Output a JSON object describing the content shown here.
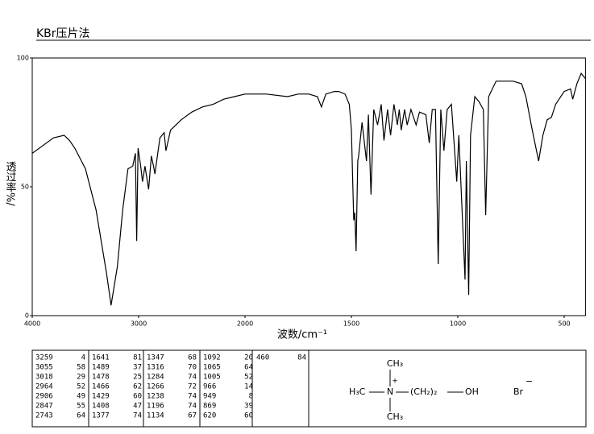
{
  "chart_data": {
    "type": "line",
    "title": "KBr压片法",
    "x_label": "波数/cm⁻¹",
    "y_label": "透过率%/",
    "xlim": [
      4000,
      400
    ],
    "xticks": [
      4000,
      3000,
      2000,
      1500,
      1000,
      500
    ],
    "ylim": [
      0,
      100
    ],
    "yticks": [
      0,
      50,
      100
    ],
    "color": "#000000",
    "x": [
      4000,
      3900,
      3800,
      3700,
      3650,
      3600,
      3500,
      3400,
      3300,
      3259,
      3200,
      3150,
      3100,
      3055,
      3030,
      3018,
      3005,
      2980,
      2964,
      2940,
      2906,
      2880,
      2860,
      2847,
      2800,
      2760,
      2743,
      2700,
      2600,
      2500,
      2400,
      2300,
      2200,
      2100,
      2000,
      1900,
      1800,
      1750,
      1700,
      1660,
      1641,
      1620,
      1580,
      1560,
      1530,
      1510,
      1500,
      1489,
      1484,
      1478,
      1470,
      1466,
      1450,
      1429,
      1420,
      1408,
      1395,
      1377,
      1360,
      1347,
      1330,
      1316,
      1300,
      1284,
      1275,
      1266,
      1250,
      1238,
      1220,
      1196,
      1180,
      1150,
      1134,
      1120,
      1105,
      1092,
      1080,
      1065,
      1050,
      1030,
      1005,
      995,
      966,
      960,
      949,
      940,
      920,
      900,
      880,
      869,
      855,
      820,
      800,
      740,
      700,
      680,
      650,
      620,
      600,
      580,
      560,
      540,
      500,
      470,
      460,
      440,
      420,
      400
    ],
    "values": [
      63,
      66,
      69,
      70,
      68,
      65,
      57,
      41,
      16,
      4,
      19,
      41,
      57,
      58,
      63,
      29,
      65,
      58,
      52,
      58,
      49,
      62,
      58,
      55,
      69,
      71,
      64,
      72,
      76,
      79,
      81,
      82,
      84,
      85,
      86,
      86,
      85,
      86,
      86,
      85,
      81,
      86,
      87,
      87,
      86,
      82,
      72,
      37,
      40,
      25,
      60,
      62,
      75,
      60,
      78,
      47,
      80,
      74,
      82,
      68,
      80,
      70,
      82,
      74,
      80,
      72,
      80,
      74,
      80,
      74,
      79,
      78,
      67,
      80,
      80,
      20,
      80,
      64,
      80,
      82,
      52,
      70,
      14,
      60,
      8,
      70,
      85,
      83,
      80,
      39,
      85,
      91,
      91,
      91,
      90,
      85,
      72,
      60,
      70,
      76,
      77,
      82,
      87,
      88,
      84,
      90,
      94,
      92
    ]
  },
  "peak_table": {
    "columns": [
      [
        [
          3259,
          4
        ],
        [
          3055,
          58
        ],
        [
          3018,
          29
        ],
        [
          2964,
          52
        ],
        [
          2906,
          49
        ],
        [
          2847,
          55
        ],
        [
          2743,
          64
        ]
      ],
      [
        [
          1641,
          81
        ],
        [
          1489,
          37
        ],
        [
          1478,
          25
        ],
        [
          1466,
          62
        ],
        [
          1429,
          60
        ],
        [
          1408,
          47
        ],
        [
          1377,
          74
        ]
      ],
      [
        [
          1347,
          68
        ],
        [
          1316,
          70
        ],
        [
          1284,
          74
        ],
        [
          1266,
          72
        ],
        [
          1238,
          74
        ],
        [
          1196,
          74
        ],
        [
          1134,
          67
        ]
      ],
      [
        [
          1092,
          20
        ],
        [
          1065,
          64
        ],
        [
          1005,
          52
        ],
        [
          966,
          14
        ],
        [
          949,
          8
        ],
        [
          869,
          39
        ],
        [
          620,
          60
        ]
      ],
      [
        [
          460,
          84
        ]
      ]
    ]
  },
  "structure": {
    "top": "CH₃",
    "charge": "+",
    "left": "H₃C",
    "center": "N",
    "chain": "(CH₂)₂",
    "group": "OH",
    "anion": "Br",
    "anion_charge": "−",
    "bottom": "CH₃"
  }
}
